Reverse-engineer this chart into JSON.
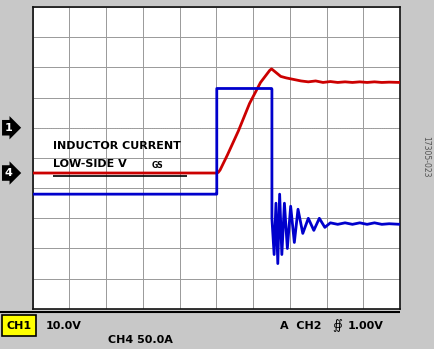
{
  "bg_color": "#c8c8c8",
  "plot_bg_color": "#ffffff",
  "grid_color": "#999999",
  "fig_width": 4.35,
  "fig_height": 3.49,
  "dpi": 100,
  "xlim": [
    0,
    10
  ],
  "ylim": [
    0,
    10
  ],
  "red_color": "#cc0000",
  "blue_color": "#0000cc",
  "label_color": "#000000",
  "ch1_label": "CH1",
  "ch1_scale": "10.0V",
  "ch4_scale": "CH4 50.0A",
  "ch2_scale": "1.00V",
  "watermark": "17305-023",
  "marker1_y": 6.0,
  "marker4_y": 4.5,
  "inductor_label": "INDUCTOR CURRENT",
  "vgs_label": "LOW-SIDE V",
  "vgs_sub": "GS",
  "red_line": {
    "x": [
      0.0,
      5.0,
      5.05,
      5.1,
      5.3,
      5.6,
      5.9,
      6.2,
      6.45,
      6.5,
      6.6,
      6.75,
      6.9,
      7.1,
      7.3,
      7.5,
      7.7,
      7.9,
      8.1,
      8.3,
      8.5,
      8.7,
      8.9,
      9.1,
      9.3,
      9.5,
      9.7,
      10.0
    ],
    "y": [
      4.5,
      4.5,
      4.52,
      4.6,
      5.1,
      5.9,
      6.8,
      7.5,
      7.9,
      7.95,
      7.85,
      7.7,
      7.65,
      7.6,
      7.55,
      7.52,
      7.55,
      7.5,
      7.53,
      7.5,
      7.52,
      7.5,
      7.52,
      7.5,
      7.52,
      7.5,
      7.51,
      7.5
    ]
  },
  "blue_line": {
    "x": [
      0.0,
      5.0,
      5.01,
      5.01,
      6.5,
      6.51,
      6.51,
      6.57,
      6.62,
      6.67,
      6.72,
      6.78,
      6.85,
      6.93,
      7.02,
      7.12,
      7.22,
      7.35,
      7.5,
      7.65,
      7.8,
      7.95,
      8.1,
      8.3,
      8.5,
      8.7,
      8.9,
      9.1,
      9.3,
      9.5,
      9.7,
      10.0
    ],
    "y": [
      3.8,
      3.8,
      3.8,
      7.3,
      7.3,
      7.28,
      3.0,
      1.8,
      3.5,
      1.5,
      3.8,
      1.8,
      3.5,
      2.0,
      3.4,
      2.2,
      3.3,
      2.5,
      3.0,
      2.6,
      3.0,
      2.7,
      2.85,
      2.8,
      2.85,
      2.8,
      2.85,
      2.8,
      2.85,
      2.8,
      2.82,
      2.8
    ]
  }
}
